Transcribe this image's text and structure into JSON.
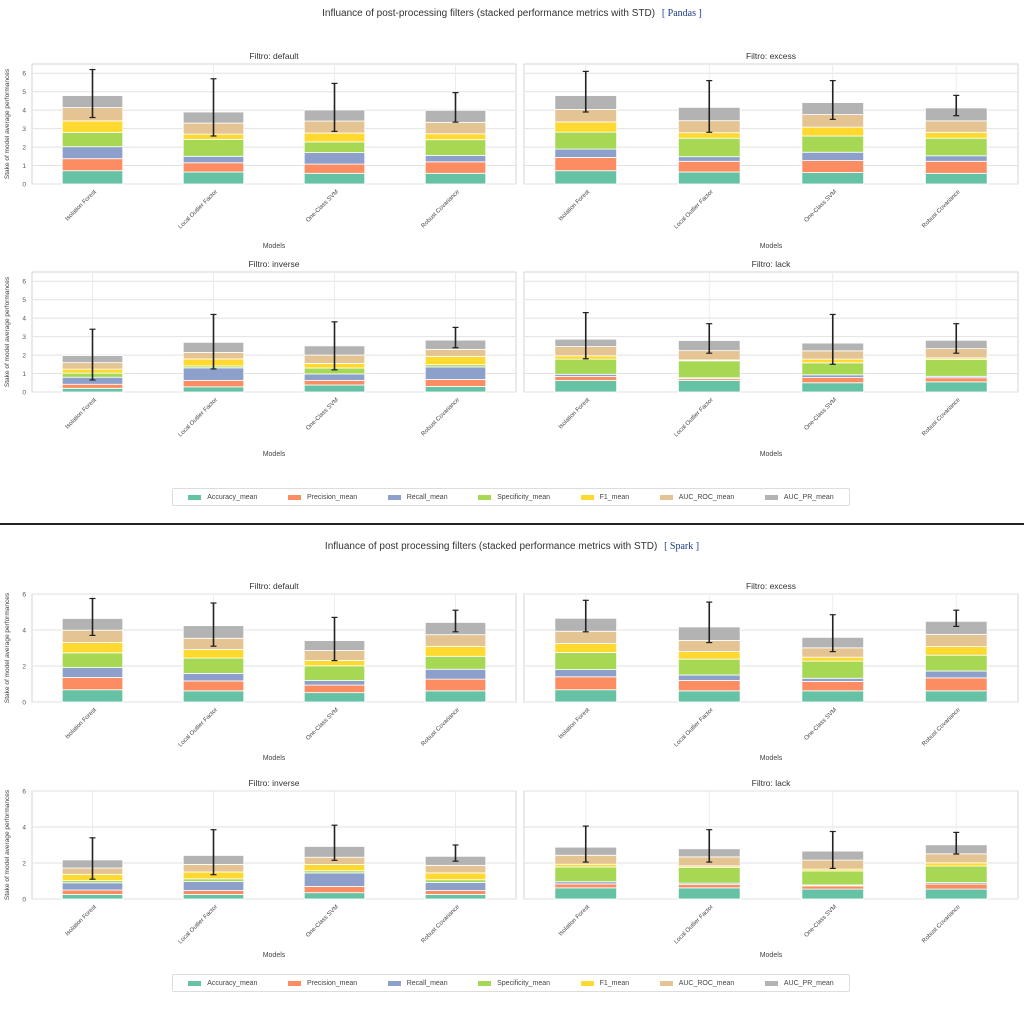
{
  "sections": [
    {
      "id": "pandas",
      "title": "Influance of post-processing filters (stacked performance metrics with STD)",
      "tag": "[ Pandas ]"
    },
    {
      "id": "spark",
      "title": "Influance of post processing filters (stacked performance metrics with STD)",
      "tag": "[ Spark ]"
    }
  ],
  "legend": [
    {
      "label": "Accuracy_mean",
      "color": "#66c2a5"
    },
    {
      "label": "Precision_mean",
      "color": "#fc8d62"
    },
    {
      "label": "Recall_mean",
      "color": "#8da0cb"
    },
    {
      "label": "Specificity_mean",
      "color": "#a6d854"
    },
    {
      "label": "F1_mean",
      "color": "#ffd92f"
    },
    {
      "label": "AUC_ROC_mean",
      "color": "#e5c494"
    },
    {
      "label": "AUC_PR_mean",
      "color": "#b3b3b3"
    }
  ],
  "chart_data": [
    {
      "type": "bar",
      "stacked": true,
      "section": "pandas",
      "title": "Filtro: default",
      "xlabel": "Models",
      "ylabel": "Stake of model average performances",
      "categories": [
        "Isolation Forest",
        "Local Outlier Factor",
        "One-Class SVM",
        "Robust Covariance"
      ],
      "yticks": [
        0,
        1,
        2,
        3,
        4,
        5,
        6
      ],
      "ylim": [
        0,
        6.5
      ],
      "series": [
        {
          "name": "Accuracy_mean",
          "values": [
            0.72,
            0.65,
            0.58,
            0.58
          ]
        },
        {
          "name": "Precision_mean",
          "values": [
            0.65,
            0.5,
            0.5,
            0.62
          ]
        },
        {
          "name": "Recall_mean",
          "values": [
            0.65,
            0.35,
            0.62,
            0.35
          ]
        },
        {
          "name": "Specificity_mean",
          "values": [
            0.78,
            0.92,
            0.58,
            0.85
          ]
        },
        {
          "name": "F1_mean",
          "values": [
            0.62,
            0.28,
            0.48,
            0.32
          ]
        },
        {
          "name": "AUC_ROC_mean",
          "values": [
            0.72,
            0.6,
            0.65,
            0.62
          ]
        },
        {
          "name": "AUC_PR_mean",
          "values": [
            0.65,
            0.6,
            0.6,
            0.65
          ]
        }
      ],
      "error": [
        {
          "low": 3.6,
          "high": 6.2
        },
        {
          "low": 2.6,
          "high": 5.7
        },
        {
          "low": 2.85,
          "high": 5.45
        },
        {
          "low": 3.35,
          "high": 4.95
        }
      ]
    },
    {
      "type": "bar",
      "stacked": true,
      "section": "pandas",
      "title": "Filtro: excess",
      "xlabel": "Models",
      "ylabel": "",
      "categories": [
        "Isolation Forest",
        "Local Outlier Factor",
        "One-Class SVM",
        "Robust Covariance"
      ],
      "yticks": [
        0,
        1,
        2,
        3,
        4,
        5,
        6
      ],
      "ylim": [
        0,
        6.5
      ],
      "series": [
        {
          "name": "Accuracy_mean",
          "values": [
            0.72,
            0.65,
            0.62,
            0.58
          ]
        },
        {
          "name": "Precision_mean",
          "values": [
            0.72,
            0.58,
            0.65,
            0.65
          ]
        },
        {
          "name": "Recall_mean",
          "values": [
            0.45,
            0.25,
            0.45,
            0.3
          ]
        },
        {
          "name": "Specificity_mean",
          "values": [
            0.92,
            1.0,
            0.88,
            0.95
          ]
        },
        {
          "name": "F1_mean",
          "values": [
            0.55,
            0.3,
            0.48,
            0.32
          ]
        },
        {
          "name": "AUC_ROC_mean",
          "values": [
            0.68,
            0.65,
            0.68,
            0.62
          ]
        },
        {
          "name": "AUC_PR_mean",
          "values": [
            0.75,
            0.72,
            0.65,
            0.7
          ]
        }
      ],
      "error": [
        {
          "low": 3.9,
          "high": 6.1
        },
        {
          "low": 2.8,
          "high": 5.6
        },
        {
          "low": 3.5,
          "high": 5.6
        },
        {
          "low": 3.7,
          "high": 4.8
        }
      ]
    },
    {
      "type": "bar",
      "stacked": true,
      "section": "pandas",
      "title": "Filtro: inverse",
      "xlabel": "Models",
      "ylabel": "Stake of model average performances",
      "categories": [
        "Isolation Forest",
        "Local Outlier Factor",
        "One-Class SVM",
        "Robust Covariance"
      ],
      "yticks": [
        0,
        1,
        2,
        3,
        4,
        5,
        6
      ],
      "ylim": [
        0,
        6.5
      ],
      "series": [
        {
          "name": "Accuracy_mean",
          "values": [
            0.2,
            0.28,
            0.38,
            0.3
          ]
        },
        {
          "name": "Precision_mean",
          "values": [
            0.22,
            0.35,
            0.25,
            0.38
          ]
        },
        {
          "name": "Recall_mean",
          "values": [
            0.38,
            0.68,
            0.35,
            0.68
          ]
        },
        {
          "name": "Specificity_mean",
          "values": [
            0.22,
            0.1,
            0.32,
            0.12
          ]
        },
        {
          "name": "F1_mean",
          "values": [
            0.22,
            0.38,
            0.25,
            0.45
          ]
        },
        {
          "name": "AUC_ROC_mean",
          "values": [
            0.35,
            0.35,
            0.45,
            0.38
          ]
        },
        {
          "name": "AUC_PR_mean",
          "values": [
            0.38,
            0.55,
            0.5,
            0.5
          ]
        }
      ],
      "error": [
        {
          "low": 0.65,
          "high": 3.4
        },
        {
          "low": 1.25,
          "high": 4.2
        },
        {
          "low": 1.2,
          "high": 3.8
        },
        {
          "low": 2.4,
          "high": 3.5
        }
      ]
    },
    {
      "type": "bar",
      "stacked": true,
      "section": "pandas",
      "title": "Filtro: lack",
      "xlabel": "Models",
      "ylabel": "",
      "categories": [
        "Isolation Forest",
        "Local Outlier Factor",
        "One-Class SVM",
        "Robust Covariance"
      ],
      "yticks": [
        0,
        1,
        2,
        3,
        4,
        5,
        6
      ],
      "ylim": [
        0,
        6.5
      ],
      "series": [
        {
          "name": "Accuracy_mean",
          "values": [
            0.62,
            0.62,
            0.5,
            0.55
          ]
        },
        {
          "name": "Precision_mean",
          "values": [
            0.22,
            0.1,
            0.28,
            0.22
          ]
        },
        {
          "name": "Recall_mean",
          "values": [
            0.12,
            0.05,
            0.15,
            0.08
          ]
        },
        {
          "name": "Specificity_mean",
          "values": [
            0.82,
            0.92,
            0.65,
            0.92
          ]
        },
        {
          "name": "F1_mean",
          "values": [
            0.18,
            0.05,
            0.2,
            0.08
          ]
        },
        {
          "name": "AUC_ROC_mean",
          "values": [
            0.5,
            0.5,
            0.45,
            0.5
          ]
        },
        {
          "name": "AUC_PR_mean",
          "values": [
            0.4,
            0.55,
            0.42,
            0.45
          ]
        }
      ],
      "error": [
        {
          "low": 1.8,
          "high": 4.3
        },
        {
          "low": 2.1,
          "high": 3.7
        },
        {
          "low": 1.5,
          "high": 4.2
        },
        {
          "low": 2.1,
          "high": 3.7
        }
      ]
    },
    {
      "type": "bar",
      "stacked": true,
      "section": "spark",
      "title": "Filtro: default",
      "xlabel": "Models",
      "ylabel": "Stake of model average performances",
      "categories": [
        "Isolation Forest",
        "Local Outlier Factor",
        "One-Class SVM",
        "Robust Covariance"
      ],
      "yticks": [
        0,
        2,
        4,
        6
      ],
      "ylim": [
        0,
        6
      ],
      "series": [
        {
          "name": "Accuracy_mean",
          "values": [
            0.68,
            0.62,
            0.52,
            0.62
          ]
        },
        {
          "name": "Precision_mean",
          "values": [
            0.68,
            0.55,
            0.42,
            0.65
          ]
        },
        {
          "name": "Recall_mean",
          "values": [
            0.55,
            0.42,
            0.25,
            0.55
          ]
        },
        {
          "name": "Specificity_mean",
          "values": [
            0.82,
            0.85,
            0.82,
            0.72
          ]
        },
        {
          "name": "F1_mean",
          "values": [
            0.58,
            0.48,
            0.3,
            0.55
          ]
        },
        {
          "name": "AUC_ROC_mean",
          "values": [
            0.68,
            0.62,
            0.55,
            0.65
          ]
        },
        {
          "name": "AUC_PR_mean",
          "values": [
            0.65,
            0.7,
            0.55,
            0.68
          ]
        }
      ],
      "error": [
        {
          "low": 3.7,
          "high": 5.75
        },
        {
          "low": 3.1,
          "high": 5.5
        },
        {
          "low": 2.3,
          "high": 4.7
        },
        {
          "low": 3.9,
          "high": 5.1
        }
      ]
    },
    {
      "type": "bar",
      "stacked": true,
      "section": "spark",
      "title": "Filtro: excess",
      "xlabel": "Models",
      "ylabel": "",
      "categories": [
        "Isolation Forest",
        "Local Outlier Factor",
        "One-Class SVM",
        "Robust Covariance"
      ],
      "yticks": [
        0,
        2,
        4,
        6
      ],
      "ylim": [
        0,
        6
      ],
      "series": [
        {
          "name": "Accuracy_mean",
          "values": [
            0.68,
            0.62,
            0.62,
            0.62
          ]
        },
        {
          "name": "Precision_mean",
          "values": [
            0.72,
            0.58,
            0.52,
            0.72
          ]
        },
        {
          "name": "Recall_mean",
          "values": [
            0.4,
            0.3,
            0.18,
            0.38
          ]
        },
        {
          "name": "Specificity_mean",
          "values": [
            0.95,
            0.88,
            0.95,
            0.88
          ]
        },
        {
          "name": "F1_mean",
          "values": [
            0.5,
            0.42,
            0.22,
            0.48
          ]
        },
        {
          "name": "AUC_ROC_mean",
          "values": [
            0.68,
            0.62,
            0.52,
            0.68
          ]
        },
        {
          "name": "AUC_PR_mean",
          "values": [
            0.72,
            0.75,
            0.58,
            0.72
          ]
        }
      ],
      "error": [
        {
          "low": 3.9,
          "high": 5.65
        },
        {
          "low": 3.3,
          "high": 5.55
        },
        {
          "low": 2.8,
          "high": 4.85
        },
        {
          "low": 4.2,
          "high": 5.1
        }
      ]
    },
    {
      "type": "bar",
      "stacked": true,
      "section": "spark",
      "title": "Filtro: inverse",
      "xlabel": "Models",
      "ylabel": "Stake of model average performances",
      "categories": [
        "Isolation Forest",
        "Local Outlier Factor",
        "One-Class SVM",
        "Robust Covariance"
      ],
      "yticks": [
        0,
        2,
        4,
        6
      ],
      "ylim": [
        0,
        6
      ],
      "series": [
        {
          "name": "Accuracy_mean",
          "values": [
            0.25,
            0.25,
            0.35,
            0.25
          ]
        },
        {
          "name": "Precision_mean",
          "values": [
            0.25,
            0.22,
            0.35,
            0.22
          ]
        },
        {
          "name": "Recall_mean",
          "values": [
            0.4,
            0.5,
            0.75,
            0.45
          ]
        },
        {
          "name": "Specificity_mean",
          "values": [
            0.12,
            0.15,
            0.12,
            0.15
          ]
        },
        {
          "name": "F1_mean",
          "values": [
            0.35,
            0.38,
            0.35,
            0.38
          ]
        },
        {
          "name": "AUC_ROC_mean",
          "values": [
            0.35,
            0.42,
            0.4,
            0.42
          ]
        },
        {
          "name": "AUC_PR_mean",
          "values": [
            0.45,
            0.5,
            0.6,
            0.5
          ]
        }
      ],
      "error": [
        {
          "low": 1.1,
          "high": 3.4
        },
        {
          "low": 1.35,
          "high": 3.85
        },
        {
          "low": 2.15,
          "high": 4.1
        },
        {
          "low": 2.1,
          "high": 3.0
        }
      ]
    },
    {
      "type": "bar",
      "stacked": true,
      "section": "spark",
      "title": "Filtro: lack",
      "xlabel": "Models",
      "ylabel": "",
      "categories": [
        "Isolation Forest",
        "Local Outlier Factor",
        "One-Class SVM",
        "Robust Covariance"
      ],
      "yticks": [
        0,
        2,
        4,
        6
      ],
      "ylim": [
        0,
        6
      ],
      "series": [
        {
          "name": "Accuracy_mean",
          "values": [
            0.62,
            0.62,
            0.55,
            0.55
          ]
        },
        {
          "name": "Precision_mean",
          "values": [
            0.22,
            0.18,
            0.18,
            0.28
          ]
        },
        {
          "name": "Recall_mean",
          "values": [
            0.12,
            0.08,
            0.05,
            0.08
          ]
        },
        {
          "name": "Specificity_mean",
          "values": [
            0.82,
            0.88,
            0.78,
            0.92
          ]
        },
        {
          "name": "F1_mean",
          "values": [
            0.15,
            0.08,
            0.1,
            0.18
          ]
        },
        {
          "name": "AUC_ROC_mean",
          "values": [
            0.5,
            0.5,
            0.5,
            0.5
          ]
        },
        {
          "name": "AUC_PR_mean",
          "values": [
            0.45,
            0.45,
            0.5,
            0.5
          ]
        }
      ],
      "error": [
        {
          "low": 2.05,
          "high": 4.05
        },
        {
          "low": 2.05,
          "high": 3.85
        },
        {
          "low": 1.7,
          "high": 3.75
        },
        {
          "low": 2.5,
          "high": 3.7
        }
      ]
    }
  ]
}
